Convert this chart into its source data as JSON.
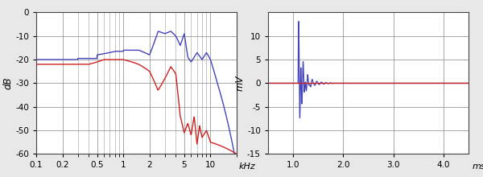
{
  "left_panel": {
    "ylabel": "dB",
    "xlabel": "kHz",
    "xlim": [
      0.1,
      20
    ],
    "ylim": [
      -60,
      0
    ],
    "yticks": [
      0,
      -10,
      -20,
      -30,
      -40,
      -50,
      -60
    ],
    "xticks_log": [
      0.1,
      0.2,
      0.5,
      1,
      2,
      5,
      10
    ],
    "xtick_labels": [
      "0.1",
      "0.2",
      "0.5",
      "1",
      "2",
      "5",
      "10"
    ],
    "blue_color": "#4444bb",
    "red_color": "#cc2222",
    "grid_color": "#999999"
  },
  "right_panel": {
    "ylabel": "mV",
    "xlabel": "ms",
    "xlim": [
      0.5,
      4.5
    ],
    "ylim": [
      -15,
      15
    ],
    "yticks": [
      -15,
      -10,
      -5,
      0,
      5,
      10
    ],
    "xticks": [
      1.0,
      2.0,
      3.0,
      4.0
    ],
    "xtick_labels": [
      "1.0",
      "2.0",
      "3.0",
      "4.0"
    ],
    "blue_color": "#4444bb",
    "red_color": "#cc2222",
    "grid_color": "#999999"
  },
  "background_color": "#ffffff",
  "fig_bg_color": "#e8e8e8"
}
